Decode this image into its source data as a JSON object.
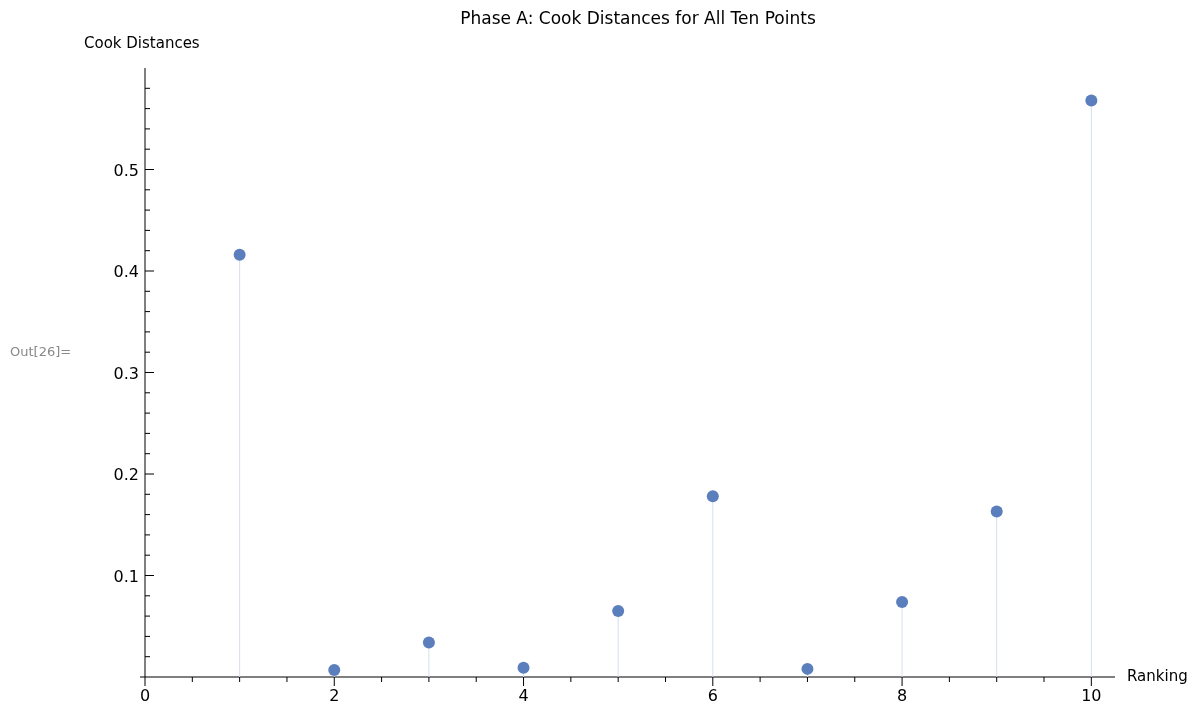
{
  "chart_data": {
    "type": "lollipop",
    "title": "Phase A: Cook Distances for All Ten Points",
    "xlabel": "Ranking",
    "ylabel": "Cook Distances",
    "annotations": [
      "Out[26]="
    ],
    "x": [
      1,
      2,
      3,
      4,
      5,
      6,
      7,
      8,
      9,
      10
    ],
    "series": [
      {
        "color": "#5b7fbd",
        "values": [
          0.416,
          0.007,
          0.034,
          0.009,
          0.065,
          0.178,
          0.008,
          0.074,
          0.163,
          0.568
        ]
      }
    ],
    "xlim": [
      0,
      10.25
    ],
    "ylim": [
      0,
      0.6
    ],
    "xticks": [
      0,
      {
        "value": 0.5,
        "label": null
      },
      {
        "value": 1,
        "label": null
      },
      {
        "value": 1.5,
        "label": null
      },
      2,
      {
        "value": 2.5,
        "label": null
      },
      {
        "value": 3,
        "label": null
      },
      {
        "value": 3.5,
        "label": null
      },
      4,
      {
        "value": 4.5,
        "label": null
      },
      {
        "value": 5,
        "label": null
      },
      {
        "value": 5.5,
        "label": null
      },
      6,
      {
        "value": 6.5,
        "label": null
      },
      {
        "value": 7,
        "label": null
      },
      {
        "value": 7.5,
        "label": null
      },
      8,
      {
        "value": 8.5,
        "label": null
      },
      {
        "value": 9,
        "label": null
      },
      {
        "value": 9.5,
        "label": null
      },
      10
    ],
    "yticks": [
      {
        "value": 0.02,
        "label": null
      },
      {
        "value": 0.04,
        "label": null
      },
      {
        "value": 0.06,
        "label": null
      },
      {
        "value": 0.08,
        "label": null
      },
      0.1,
      {
        "value": 0.12,
        "label": null
      },
      {
        "value": 0.14,
        "label": null
      },
      {
        "value": 0.16,
        "label": null
      },
      {
        "value": 0.18,
        "label": null
      },
      0.2,
      {
        "value": 0.22,
        "label": null
      },
      {
        "value": 0.24,
        "label": null
      },
      {
        "value": 0.26,
        "label": null
      },
      {
        "value": 0.28,
        "label": null
      },
      0.3,
      {
        "value": 0.32,
        "label": null
      },
      {
        "value": 0.34,
        "label": null
      },
      {
        "value": 0.36,
        "label": null
      },
      {
        "value": 0.38,
        "label": null
      },
      0.4,
      {
        "value": 0.42,
        "label": null
      },
      {
        "value": 0.44,
        "label": null
      },
      {
        "value": 0.46,
        "label": null
      },
      {
        "value": 0.48,
        "label": null
      },
      0.5,
      {
        "value": 0.52,
        "label": null
      },
      {
        "value": 0.54,
        "label": null
      },
      {
        "value": 0.56,
        "label": null
      },
      {
        "value": 0.58,
        "label": null
      }
    ],
    "marker": "circle"
  }
}
